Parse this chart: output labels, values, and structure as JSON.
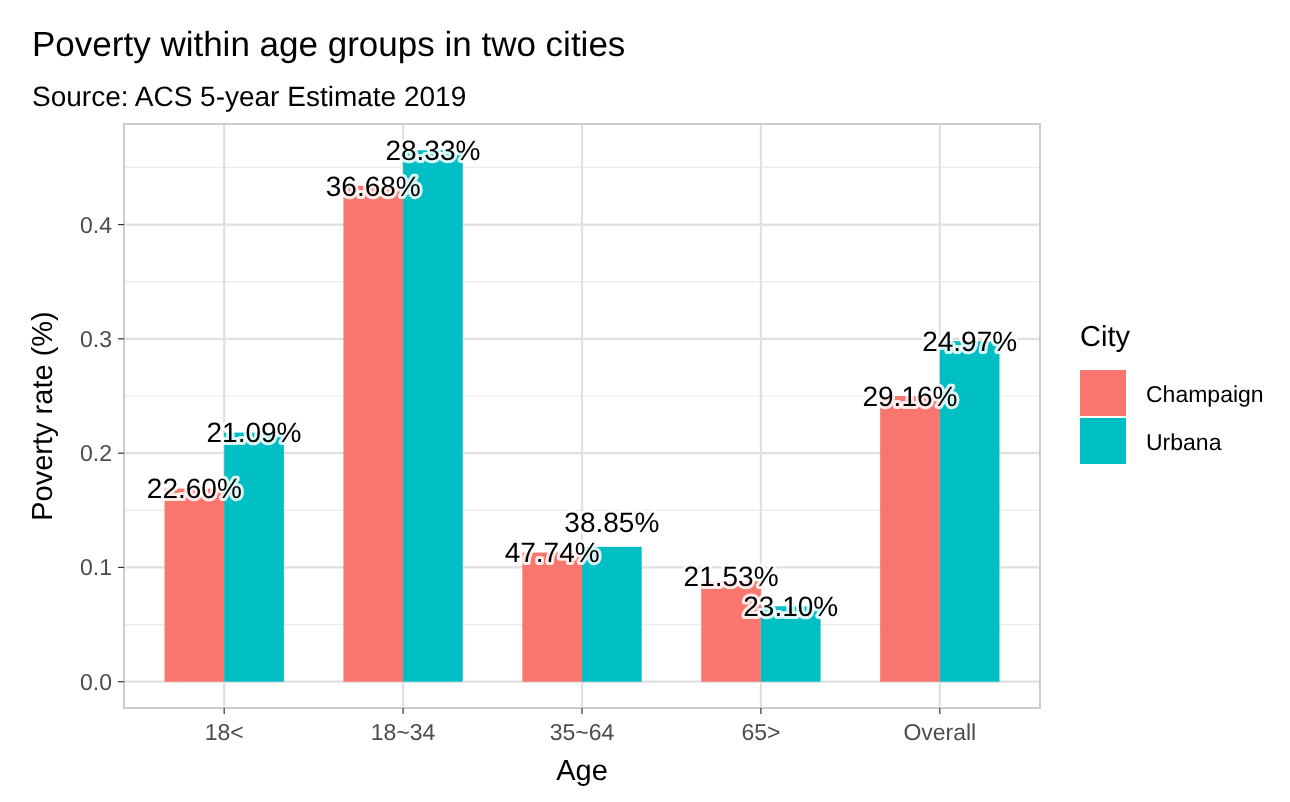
{
  "chart_data": {
    "type": "bar",
    "title": "Poverty within age groups in two cities",
    "subtitle": "Source: ACS 5-year Estimate 2019",
    "xlabel": "Age",
    "ylabel": "Poverty rate (%)",
    "legend_title": "City",
    "categories": [
      "18<",
      "18~34",
      "35~64",
      "65>",
      "Overall"
    ],
    "series": [
      {
        "name": "Champaign",
        "color": "#f8766d",
        "values": [
          0.169,
          0.434,
          0.113,
          0.088,
          0.25
        ]
      },
      {
        "name": "Urbana",
        "color": "#00bfc4",
        "values": [
          0.218,
          0.465,
          0.118,
          0.066,
          0.298
        ]
      }
    ],
    "annotations": [
      {
        "text": "22.60%",
        "x": "18<",
        "y": 0.169
      },
      {
        "text": "36.68%",
        "x": "18~34",
        "y": 0.434
      },
      {
        "text": "47.74%",
        "x": "35~64",
        "y": 0.113
      },
      {
        "text": "21.53%",
        "x": "65>",
        "y": 0.088
      },
      {
        "text": "29.16%",
        "x": "Overall",
        "y": 0.25
      },
      {
        "text": "21.09%",
        "x": "18<",
        "y": 0.218
      },
      {
        "text": "28.33%",
        "x": "18~34",
        "y": 0.465
      },
      {
        "text": "38.85%",
        "x": "35~64",
        "y": 0.118
      },
      {
        "text": "23.10%",
        "x": "65>",
        "y": 0.066
      },
      {
        "text": "24.97%",
        "x": "Overall",
        "y": 0.298
      }
    ],
    "ylim": [
      -0.023,
      0.488
    ],
    "yticks": [
      {
        "value": 0,
        "label": "0.0"
      },
      {
        "value": 0.1,
        "label": "0.1"
      },
      {
        "value": 0.2,
        "label": "0.2"
      },
      {
        "value": 0.3,
        "label": "0.3"
      },
      {
        "value": 0.4,
        "label": "0.4"
      }
    ],
    "grid": true,
    "legend": "right"
  }
}
